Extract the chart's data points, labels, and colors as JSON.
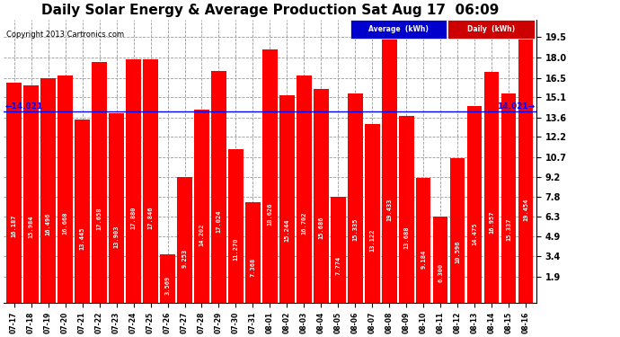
{
  "title": "Daily Solar Energy & Average Production Sat Aug 17  06:09",
  "copyright": "Copyright 2013 Cartronics.com",
  "categories": [
    "07-17",
    "07-18",
    "07-19",
    "07-20",
    "07-21",
    "07-22",
    "07-23",
    "07-24",
    "07-25",
    "07-26",
    "07-27",
    "07-28",
    "07-29",
    "07-30",
    "07-31",
    "08-01",
    "08-02",
    "08-03",
    "08-04",
    "08-05",
    "08-06",
    "08-07",
    "08-08",
    "08-09",
    "08-10",
    "08-11",
    "08-12",
    "08-13",
    "08-14",
    "08-15",
    "08-16"
  ],
  "values": [
    16.187,
    15.984,
    16.496,
    16.668,
    13.445,
    17.658,
    13.903,
    17.88,
    17.846,
    3.569,
    9.253,
    14.202,
    17.024,
    11.27,
    7.368,
    18.626,
    15.244,
    16.702,
    15.686,
    7.774,
    15.335,
    13.122,
    19.433,
    13.688,
    9.184,
    6.3,
    10.596,
    14.475,
    16.957,
    15.337,
    19.454
  ],
  "average_line": 14.021,
  "bar_color": "#ff0000",
  "average_line_color": "#0000ff",
  "background_color": "#ffffff",
  "yticks": [
    1.9,
    3.4,
    4.9,
    6.3,
    7.8,
    9.2,
    10.7,
    12.2,
    13.6,
    15.1,
    16.5,
    18.0,
    19.5
  ],
  "ymin": 0.0,
  "ymax": 20.8,
  "title_fontsize": 11,
  "bar_label_fontsize": 5.0,
  "avg_label_fontsize": 6.5,
  "legend_avg_text": "Average  (kWh)",
  "legend_daily_text": "Daily  (kWh)",
  "legend_avg_bg": "#0000cd",
  "legend_daily_bg": "#cc0000"
}
